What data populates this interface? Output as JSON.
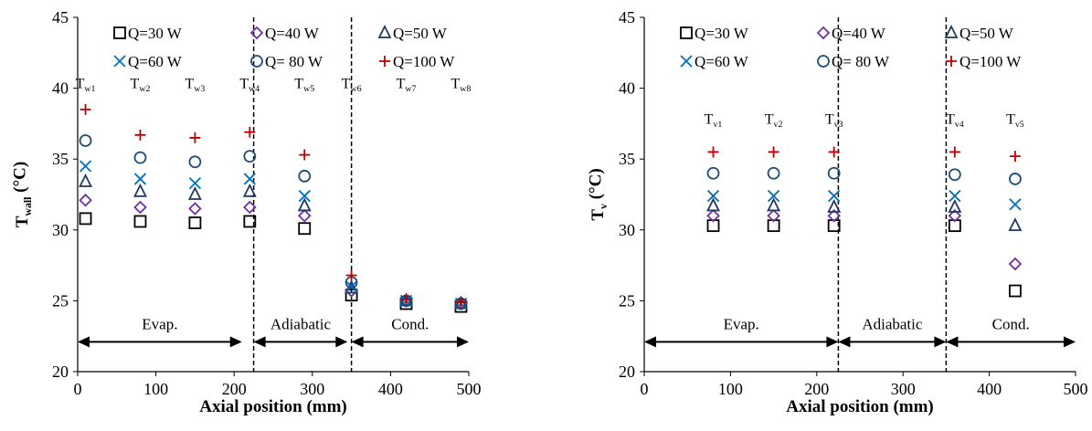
{
  "chart_data": [
    {
      "type": "scatter",
      "xlabel": "Axial position (mm)",
      "ylabel": {
        "main": "T",
        "sub": "wall",
        "unit": " (°C)"
      },
      "xlim": [
        0,
        500
      ],
      "ylim": [
        20,
        45
      ],
      "xticks": [
        0,
        100,
        200,
        300,
        400,
        500
      ],
      "yticks": [
        20,
        25,
        30,
        35,
        40,
        45
      ],
      "grid": false,
      "legend_position": "top",
      "series": [
        {
          "name": "Q=30 W",
          "marker": "square",
          "color": "#000000",
          "x": [
            10,
            80,
            150,
            220,
            290,
            350,
            420,
            490
          ],
          "y": [
            30.8,
            30.6,
            30.5,
            30.6,
            30.1,
            25.4,
            24.8,
            24.6
          ]
        },
        {
          "name": "Q=40 W",
          "marker": "diamond",
          "color": "#7030A0",
          "x": [
            10,
            80,
            150,
            220,
            290,
            350,
            420,
            490
          ],
          "y": [
            32.1,
            31.6,
            31.5,
            31.6,
            31.0,
            25.7,
            25.0,
            24.8
          ]
        },
        {
          "name": "Q=50 W",
          "marker": "triangle",
          "color": "#1F3864",
          "x": [
            10,
            80,
            150,
            220,
            290,
            350,
            420,
            490
          ],
          "y": [
            33.4,
            32.7,
            32.5,
            32.7,
            31.7,
            25.9,
            25.0,
            24.8
          ]
        },
        {
          "name": "Q=60 W",
          "marker": "x",
          "color": "#0070C0",
          "x": [
            10,
            80,
            150,
            220,
            290,
            350,
            420,
            490
          ],
          "y": [
            34.5,
            33.6,
            33.3,
            33.6,
            32.4,
            26.0,
            25.0,
            24.8
          ]
        },
        {
          "name": "Q= 80 W",
          "marker": "circle",
          "color": "#1F4E79",
          "x": [
            10,
            80,
            150,
            220,
            290,
            350,
            420,
            490
          ],
          "y": [
            36.3,
            35.1,
            34.8,
            35.2,
            33.8,
            26.3,
            25.0,
            24.8
          ]
        },
        {
          "name": "Q=100 W",
          "marker": "plus",
          "color": "#C00000",
          "x": [
            10,
            80,
            150,
            220,
            290,
            350,
            420,
            490
          ],
          "y": [
            38.5,
            36.7,
            36.5,
            36.9,
            35.3,
            26.8,
            25.1,
            24.9
          ]
        }
      ],
      "annotations": [
        {
          "main": "T",
          "sub": "w1",
          "x": 10
        },
        {
          "main": "T",
          "sub": "w2",
          "x": 80
        },
        {
          "main": "T",
          "sub": "w3",
          "x": 150
        },
        {
          "main": "T",
          "sub": "w4",
          "x": 220
        },
        {
          "main": "T",
          "sub": "w5",
          "x": 290
        },
        {
          "main": "T",
          "sub": "w6",
          "x": 350
        },
        {
          "main": "T",
          "sub": "w7",
          "x": 420
        },
        {
          "main": "T",
          "sub": "w8",
          "x": 490
        }
      ],
      "annotation_y": 40,
      "dividers": [
        225,
        350
      ],
      "regions": [
        {
          "label": "Evap.",
          "from": 0,
          "to": 210
        },
        {
          "label": "Adiabatic",
          "from": 225,
          "to": 345
        },
        {
          "label": "Cond.",
          "from": 350,
          "to": 500
        }
      ],
      "region_arrow_y": 22.1,
      "region_label_y": 23.0
    },
    {
      "type": "scatter",
      "xlabel": "Axial position (mm)",
      "ylabel": {
        "main": "T",
        "sub": "v",
        "unit": " (°C)"
      },
      "xlim": [
        0,
        500
      ],
      "ylim": [
        20,
        45
      ],
      "xticks": [
        0,
        100,
        200,
        300,
        400,
        500
      ],
      "yticks": [
        20,
        25,
        30,
        35,
        40,
        45
      ],
      "grid": false,
      "legend_position": "top",
      "series": [
        {
          "name": "Q=30 W",
          "marker": "square",
          "color": "#000000",
          "x": [
            80,
            150,
            220,
            360,
            430
          ],
          "y": [
            30.3,
            30.3,
            30.3,
            30.3,
            25.7
          ]
        },
        {
          "name": "Q=40 W",
          "marker": "diamond",
          "color": "#7030A0",
          "x": [
            80,
            150,
            220,
            360,
            430
          ],
          "y": [
            31.0,
            31.0,
            31.0,
            31.0,
            27.6
          ]
        },
        {
          "name": "Q=50 W",
          "marker": "triangle",
          "color": "#1F3864",
          "x": [
            80,
            150,
            220,
            360,
            430
          ],
          "y": [
            31.7,
            31.7,
            31.6,
            31.6,
            30.3
          ]
        },
        {
          "name": "Q=60 W",
          "marker": "x",
          "color": "#0070C0",
          "x": [
            80,
            150,
            220,
            360,
            430
          ],
          "y": [
            32.4,
            32.4,
            32.4,
            32.4,
            31.8
          ]
        },
        {
          "name": "Q= 80 W",
          "marker": "circle",
          "color": "#1F4E79",
          "x": [
            80,
            150,
            220,
            360,
            430
          ],
          "y": [
            34.0,
            34.0,
            34.0,
            33.9,
            33.6
          ]
        },
        {
          "name": "Q=100 W",
          "marker": "plus",
          "color": "#C00000",
          "x": [
            80,
            150,
            220,
            360,
            430
          ],
          "y": [
            35.5,
            35.5,
            35.5,
            35.5,
            35.2
          ]
        }
      ],
      "annotations": [
        {
          "main": "T",
          "sub": "v1",
          "x": 80
        },
        {
          "main": "T",
          "sub": "v2",
          "x": 150
        },
        {
          "main": "T",
          "sub": "v3",
          "x": 220
        },
        {
          "main": "T",
          "sub": "v4",
          "x": 360
        },
        {
          "main": "T",
          "sub": "v5",
          "x": 430
        }
      ],
      "annotation_y": 37.5,
      "dividers": [
        225,
        350
      ],
      "regions": [
        {
          "label": "Evap.",
          "from": 0,
          "to": 225
        },
        {
          "label": "Adiabatic",
          "from": 225,
          "to": 350
        },
        {
          "label": "Cond.",
          "from": 350,
          "to": 500
        }
      ],
      "region_arrow_y": 22.1,
      "region_label_y": 23.0
    }
  ]
}
